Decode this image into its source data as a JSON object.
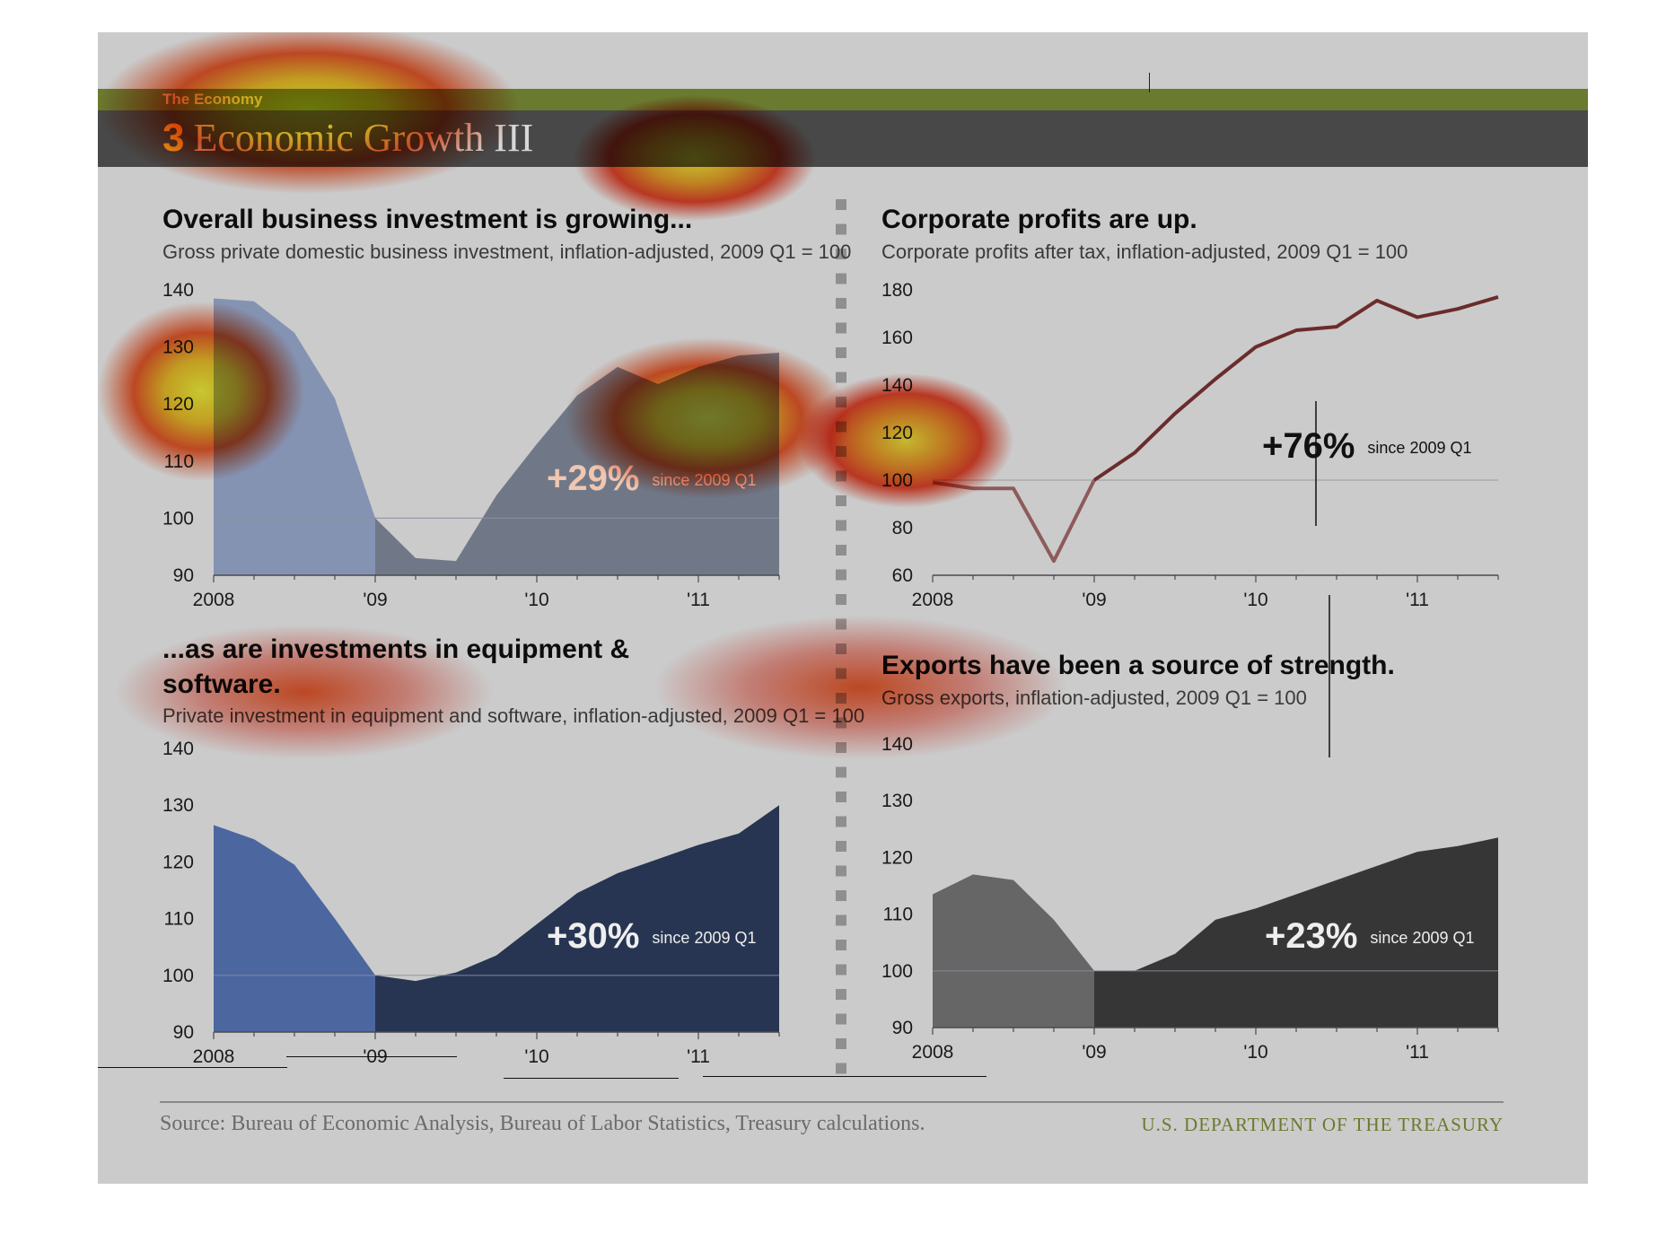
{
  "header": {
    "section": "The Economy",
    "number": "3",
    "title": "Economic Growth III"
  },
  "footer": {
    "source": "Source: Bureau of Economic Analysis, Bureau of Labor Statistics, Treasury calculations.",
    "brand": "U.S. DEPARTMENT OF THE TREASURY"
  },
  "colors": {
    "olive": "#6a7a2e",
    "title_bar": "#484848",
    "number_yellow": "#e7c01a",
    "investment_pre": "#4c66a0",
    "investment_post": "#273552",
    "profits_line": "#6b2c2c",
    "exports_pre": "#666666",
    "exports_post": "#363636"
  },
  "chart_data": [
    {
      "type": "area",
      "title": "Overall business investment is growing...",
      "subtitle": "Gross private domestic business investment, inflation-adjusted, 2009 Q1 = 100",
      "x": [
        "2008 Q1",
        "2008 Q2",
        "2008 Q3",
        "2008 Q4",
        "2009 Q1",
        "2009 Q2",
        "2009 Q3",
        "2009 Q4",
        "2010 Q1",
        "2010 Q2",
        "2010 Q3",
        "2010 Q4",
        "2011 Q1",
        "2011 Q2",
        "2011 Q3"
      ],
      "values": [
        138.5,
        138,
        132.5,
        121,
        100,
        93,
        92.5,
        104,
        113,
        121.5,
        126.5,
        123.5,
        126.5,
        128.5,
        129
      ],
      "xticks": [
        "2008",
        "'09",
        "'10",
        "'11"
      ],
      "yticks": [
        90,
        100,
        110,
        120,
        130,
        140
      ],
      "ylim": [
        90,
        140
      ],
      "reference": 100,
      "callout": {
        "value": "+29%",
        "note": "since 2009 Q1"
      }
    },
    {
      "type": "line",
      "title": "Corporate profits are up.",
      "subtitle": "Corporate profits after tax, inflation-adjusted, 2009 Q1 = 100",
      "x": [
        "2008 Q1",
        "2008 Q2",
        "2008 Q3",
        "2008 Q4",
        "2009 Q1",
        "2009 Q2",
        "2009 Q3",
        "2009 Q4",
        "2010 Q1",
        "2010 Q2",
        "2010 Q3",
        "2010 Q4",
        "2011 Q1",
        "2011 Q2",
        "2011 Q3"
      ],
      "values": [
        99,
        96.5,
        96.5,
        66,
        100,
        111.5,
        128,
        142.5,
        156,
        163,
        164.5,
        175.5,
        168.5,
        172,
        177
      ],
      "xticks": [
        "2008",
        "'09",
        "'10",
        "'11"
      ],
      "yticks": [
        60,
        80,
        100,
        120,
        140,
        160,
        180
      ],
      "ylim": [
        60,
        180
      ],
      "reference": 100,
      "callout": {
        "value": "+76%",
        "note": "since 2009 Q1"
      }
    },
    {
      "type": "area",
      "title": "...as are investments in equipment & software.",
      "subtitle": "Private investment in equipment and software, inflation-adjusted, 2009 Q1 = 100",
      "x": [
        "2008 Q1",
        "2008 Q2",
        "2008 Q3",
        "2008 Q4",
        "2009 Q1",
        "2009 Q2",
        "2009 Q3",
        "2009 Q4",
        "2010 Q1",
        "2010 Q2",
        "2010 Q3",
        "2010 Q4",
        "2011 Q1",
        "2011 Q2",
        "2011 Q3"
      ],
      "values": [
        126.5,
        124,
        119.5,
        110,
        100,
        99,
        100.5,
        103.5,
        109,
        114.5,
        118,
        120.5,
        123,
        125,
        130
      ],
      "xticks": [
        "2008",
        "'09",
        "'10",
        "'11"
      ],
      "yticks": [
        90,
        100,
        110,
        120,
        130,
        140
      ],
      "ylim": [
        90,
        140
      ],
      "reference": 100,
      "callout": {
        "value": "+30%",
        "note": "since 2009 Q1"
      }
    },
    {
      "type": "area",
      "title": "Exports have been a source of strength.",
      "subtitle": "Gross exports, inflation-adjusted, 2009 Q1 = 100",
      "x": [
        "2008 Q1",
        "2008 Q2",
        "2008 Q3",
        "2008 Q4",
        "2009 Q1",
        "2009 Q2",
        "2009 Q3",
        "2009 Q4",
        "2010 Q1",
        "2010 Q2",
        "2010 Q3",
        "2010 Q4",
        "2011 Q1",
        "2011 Q2",
        "2011 Q3"
      ],
      "values": [
        113.5,
        117,
        116,
        109,
        100,
        100,
        103,
        109,
        111,
        113.5,
        116,
        118.5,
        121,
        122,
        123.5
      ],
      "xticks": [
        "2008",
        "'09",
        "'10",
        "'11"
      ],
      "yticks": [
        90,
        100,
        110,
        120,
        130,
        140
      ],
      "ylim": [
        90,
        140
      ],
      "reference": 100,
      "callout": {
        "value": "+23%",
        "note": "since 2009 Q1"
      }
    }
  ]
}
